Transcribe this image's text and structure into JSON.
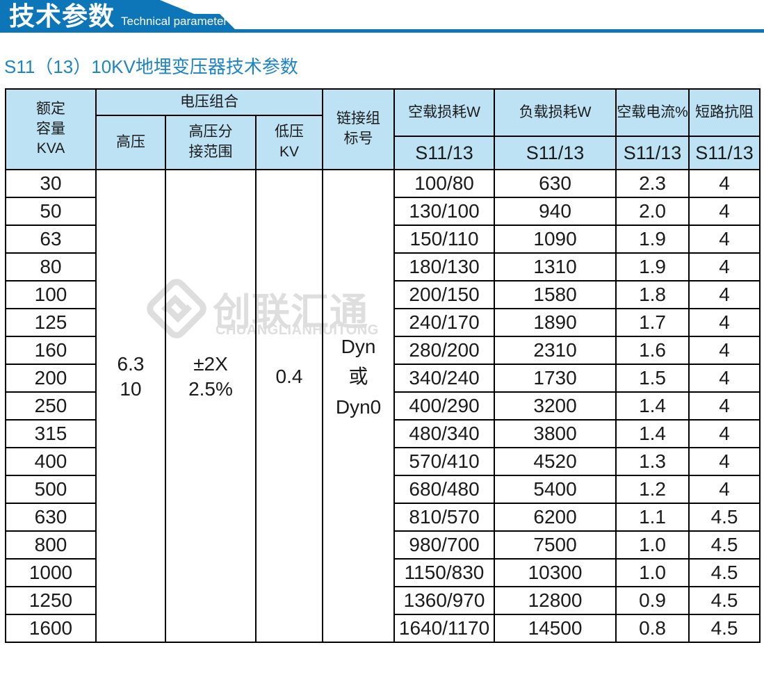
{
  "banner": {
    "title_cn": "技术参数",
    "title_en": "Technical parameter"
  },
  "page_title": "S11（13）10KV地埋变压器技术参数",
  "table": {
    "header": {
      "rated_capacity": "额定\n容量\nKVA",
      "voltage_group": "电压组合",
      "hv": "高压",
      "hv_tap_range": "高压分\n接范围",
      "lv": "低压\nKV",
      "connection_group": "链接组\n标号",
      "no_load_loss": "空载损耗W",
      "load_loss": "负载损耗W",
      "no_load_current": "空载电流%",
      "impedance": "短路抗阻",
      "model": "S11/13"
    },
    "merged": {
      "hv": "6.3\n10",
      "tap_range": "±2X\n2.5%",
      "lv": "0.4",
      "connection": "Dyn\n或\nDyn0"
    },
    "rows": [
      {
        "kva": "30",
        "no_load_loss": "100/80",
        "load_loss": "630",
        "no_load_current": "2.3",
        "impedance": "4"
      },
      {
        "kva": "50",
        "no_load_loss": "130/100",
        "load_loss": "940",
        "no_load_current": "2.0",
        "impedance": "4"
      },
      {
        "kva": "63",
        "no_load_loss": "150/110",
        "load_loss": "1090",
        "no_load_current": "1.9",
        "impedance": "4"
      },
      {
        "kva": "80",
        "no_load_loss": "180/130",
        "load_loss": "1310",
        "no_load_current": "1.9",
        "impedance": "4"
      },
      {
        "kva": "100",
        "no_load_loss": "200/150",
        "load_loss": "1580",
        "no_load_current": "1.8",
        "impedance": "4"
      },
      {
        "kva": "125",
        "no_load_loss": "240/170",
        "load_loss": "1890",
        "no_load_current": "1.7",
        "impedance": "4"
      },
      {
        "kva": "160",
        "no_load_loss": "280/200",
        "load_loss": "2310",
        "no_load_current": "1.6",
        "impedance": "4"
      },
      {
        "kva": "200",
        "no_load_loss": "340/240",
        "load_loss": "1730",
        "no_load_current": "1.5",
        "impedance": "4"
      },
      {
        "kva": "250",
        "no_load_loss": "400/290",
        "load_loss": "3200",
        "no_load_current": "1.4",
        "impedance": "4"
      },
      {
        "kva": "315",
        "no_load_loss": "480/340",
        "load_loss": "3800",
        "no_load_current": "1.4",
        "impedance": "4"
      },
      {
        "kva": "400",
        "no_load_loss": "570/410",
        "load_loss": "4520",
        "no_load_current": "1.3",
        "impedance": "4"
      },
      {
        "kva": "500",
        "no_load_loss": "680/480",
        "load_loss": "5400",
        "no_load_current": "1.2",
        "impedance": "4"
      },
      {
        "kva": "630",
        "no_load_loss": "810/570",
        "load_loss": "6200",
        "no_load_current": "1.1",
        "impedance": "4.5"
      },
      {
        "kva": "800",
        "no_load_loss": "980/700",
        "load_loss": "7500",
        "no_load_current": "1.0",
        "impedance": "4.5"
      },
      {
        "kva": "1000",
        "no_load_loss": "1150/830",
        "load_loss": "10300",
        "no_load_current": "1.0",
        "impedance": "4.5"
      },
      {
        "kva": "1250",
        "no_load_loss": "1360/970",
        "load_loss": "12800",
        "no_load_current": "0.9",
        "impedance": "4.5"
      },
      {
        "kva": "1600",
        "no_load_loss": "1640/1170",
        "load_loss": "14500",
        "no_load_current": "0.8",
        "impedance": "4.5"
      }
    ]
  },
  "watermark": {
    "cn": "创联汇通",
    "en": "CHUANGLIANHUITONG"
  },
  "colors": {
    "banner_blue": "#0d76b9",
    "table_header_bg": "#bce2f4",
    "title_blue": "#1d84c5",
    "watermark_gray": "#dedede"
  }
}
